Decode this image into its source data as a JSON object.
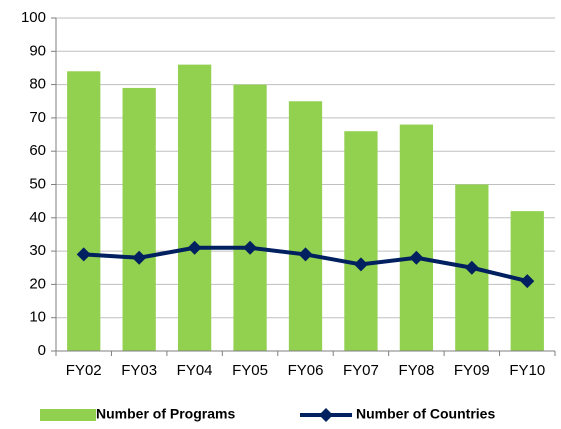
{
  "chart_data": {
    "type": "bar",
    "categories": [
      "FY02",
      "FY03",
      "FY04",
      "FY05",
      "FY06",
      "FY07",
      "FY08",
      "FY09",
      "FY10"
    ],
    "series": [
      {
        "name": "Number of Programs",
        "type": "bar",
        "color": "#92d050",
        "values": [
          84,
          79,
          86,
          80,
          75,
          66,
          68,
          50,
          42
        ]
      },
      {
        "name": "Number of Countries",
        "type": "line",
        "color": "#002060",
        "values": [
          29,
          28,
          31,
          31,
          29,
          26,
          28,
          25,
          21
        ]
      }
    ],
    "ylim": [
      0,
      100
    ],
    "yticks": [
      0,
      10,
      20,
      30,
      40,
      50,
      60,
      70,
      80,
      90,
      100
    ],
    "grid": true,
    "legend": "bottom"
  }
}
